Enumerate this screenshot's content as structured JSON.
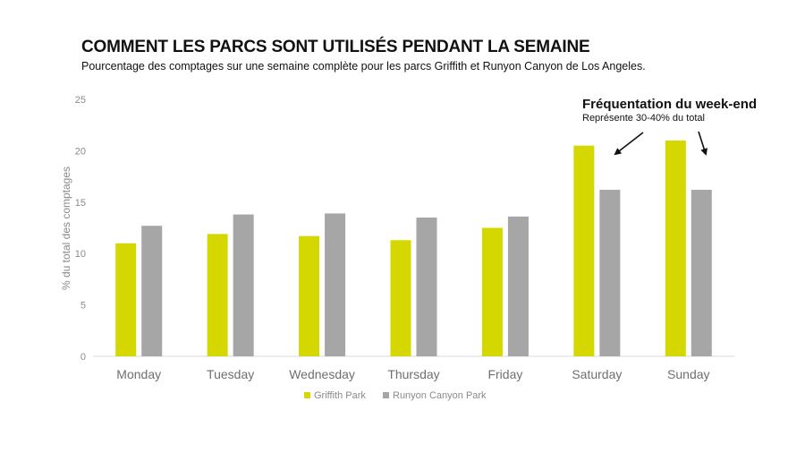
{
  "header": {
    "title": "COMMENT LES PARCS SONT UTILISÉS PENDANT LA SEMAINE",
    "subtitle": "Pourcentage des comptages sur une semaine complète pour les parcs Griffith et Runyon Canyon de Los Angeles."
  },
  "annotation": {
    "title": "Fréquentation du week-end",
    "subtitle": "Représente 30-40% du total"
  },
  "chart_data": {
    "type": "bar",
    "categories": [
      "Monday",
      "Tuesday",
      "Wednesday",
      "Thursday",
      "Friday",
      "Saturday",
      "Sunday"
    ],
    "series": [
      {
        "name": "Griffith Park",
        "values": [
          11.0,
          11.9,
          11.7,
          11.3,
          12.5,
          20.5,
          21.0
        ],
        "color": "#d4d800"
      },
      {
        "name": "Runyon Canyon Park",
        "values": [
          12.7,
          13.8,
          13.9,
          13.5,
          13.6,
          16.2,
          16.2
        ],
        "color": "#a6a6a6"
      }
    ],
    "ylabel": "% du total des comptages",
    "xlabel": "",
    "ylim": [
      0,
      25
    ],
    "yticks": [
      0,
      5,
      10,
      15,
      20,
      25
    ],
    "grid": false,
    "legend": "bottom"
  }
}
